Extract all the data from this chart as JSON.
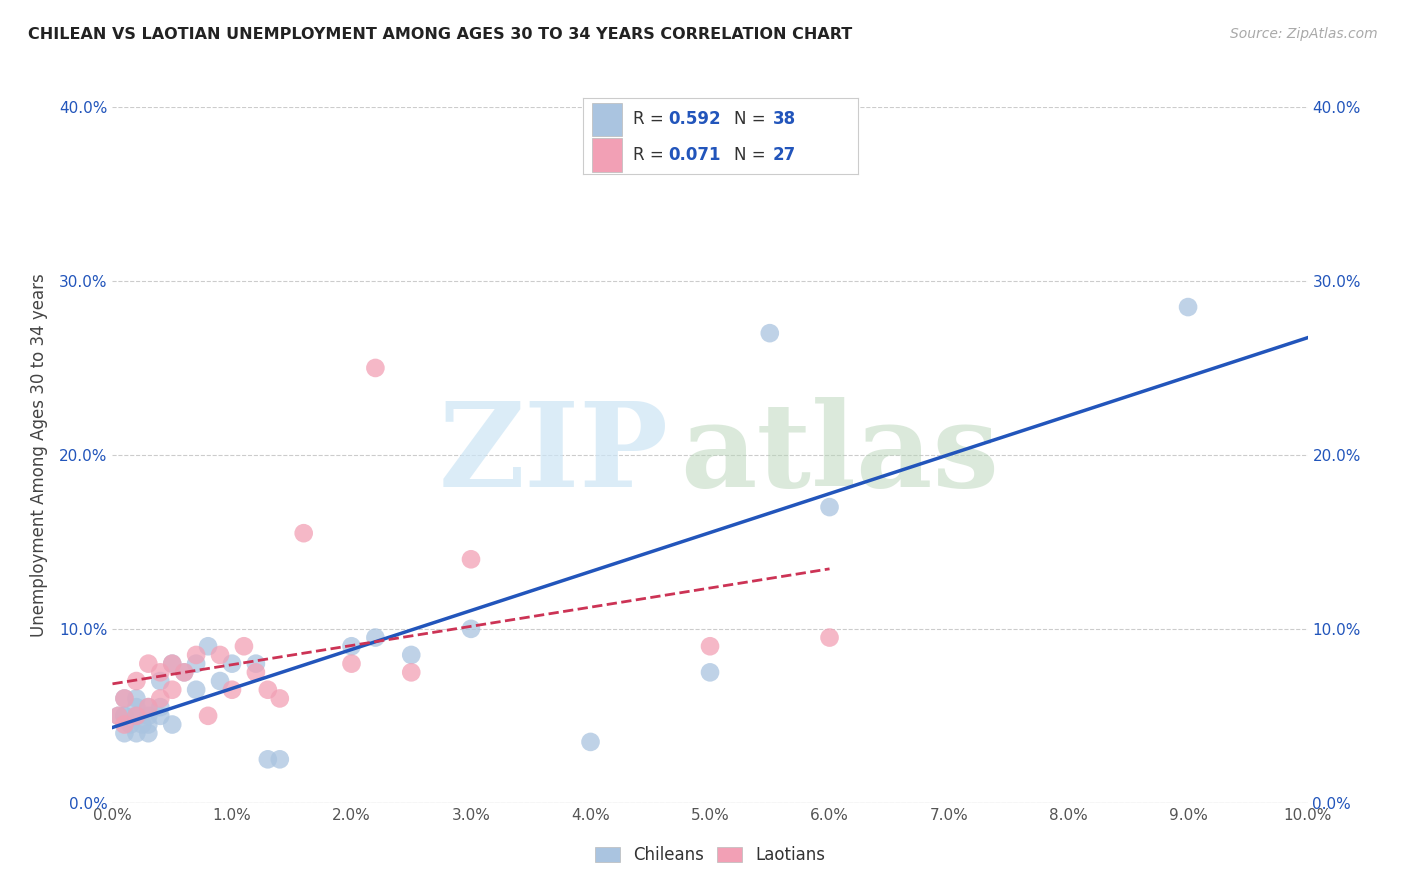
{
  "title": "CHILEAN VS LAOTIAN UNEMPLOYMENT AMONG AGES 30 TO 34 YEARS CORRELATION CHART",
  "source": "Source: ZipAtlas.com",
  "ylabel": "Unemployment Among Ages 30 to 34 years",
  "xlim": [
    0.0,
    0.1
  ],
  "ylim": [
    0.0,
    0.4
  ],
  "xticks": [
    0.0,
    0.01,
    0.02,
    0.03,
    0.04,
    0.05,
    0.06,
    0.07,
    0.08,
    0.09,
    0.1
  ],
  "yticks": [
    0.0,
    0.1,
    0.2,
    0.3,
    0.4
  ],
  "chilean_color": "#aac4e0",
  "laotian_color": "#f2a0b5",
  "chilean_line_color": "#2255bb",
  "laotian_line_color": "#cc3355",
  "R_chilean": "0.592",
  "N_chilean": "38",
  "R_laotian": "0.071",
  "N_laotian": "27",
  "tick_color_blue": "#2255bb",
  "tick_color_dark": "#555555",
  "background_color": "#ffffff",
  "grid_color": "#cccccc",
  "chilean_x": [
    0.0005,
    0.001,
    0.001,
    0.001,
    0.001,
    0.0015,
    0.002,
    0.002,
    0.002,
    0.002,
    0.0025,
    0.003,
    0.003,
    0.003,
    0.003,
    0.004,
    0.004,
    0.004,
    0.005,
    0.005,
    0.006,
    0.007,
    0.007,
    0.008,
    0.009,
    0.01,
    0.012,
    0.013,
    0.014,
    0.02,
    0.022,
    0.025,
    0.03,
    0.04,
    0.05,
    0.055,
    0.06,
    0.09
  ],
  "chilean_y": [
    0.05,
    0.04,
    0.05,
    0.05,
    0.06,
    0.045,
    0.04,
    0.05,
    0.055,
    0.06,
    0.045,
    0.04,
    0.045,
    0.05,
    0.055,
    0.05,
    0.055,
    0.07,
    0.045,
    0.08,
    0.075,
    0.065,
    0.08,
    0.09,
    0.07,
    0.08,
    0.08,
    0.025,
    0.025,
    0.09,
    0.095,
    0.085,
    0.1,
    0.035,
    0.075,
    0.27,
    0.17,
    0.285
  ],
  "laotian_x": [
    0.0005,
    0.001,
    0.001,
    0.002,
    0.002,
    0.003,
    0.003,
    0.004,
    0.004,
    0.005,
    0.005,
    0.006,
    0.007,
    0.008,
    0.009,
    0.01,
    0.011,
    0.012,
    0.013,
    0.014,
    0.016,
    0.02,
    0.022,
    0.025,
    0.03,
    0.05,
    0.06
  ],
  "laotian_y": [
    0.05,
    0.045,
    0.06,
    0.05,
    0.07,
    0.055,
    0.08,
    0.06,
    0.075,
    0.065,
    0.08,
    0.075,
    0.085,
    0.05,
    0.085,
    0.065,
    0.09,
    0.075,
    0.065,
    0.06,
    0.155,
    0.08,
    0.25,
    0.075,
    0.14,
    0.09,
    0.095
  ]
}
